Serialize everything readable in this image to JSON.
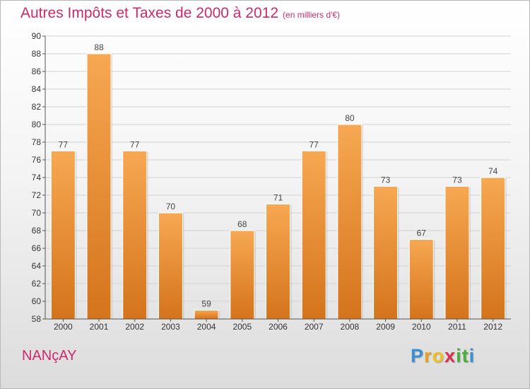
{
  "title": "Autres Impôts et Taxes de 2000 à 2012",
  "subtitle": "(en milliers d'€)",
  "commune": "NANçAY",
  "brand": {
    "letters": [
      "P",
      "r",
      "o",
      "x",
      "i",
      "t",
      "i"
    ],
    "colors": [
      "#3a8fd6",
      "#e8a21c",
      "#f0c020",
      "#d9324f",
      "#4aae3c",
      "#4aae3c",
      "#3a8fd6"
    ]
  },
  "colors": {
    "bar_top": "#f7a852",
    "bar_bottom": "#d4741c",
    "title": "#cc2a6d"
  },
  "chart_data": {
    "type": "bar",
    "title": "Autres Impôts et Taxes de 2000 à 2012",
    "subtitle": "(en milliers d'€)",
    "categories": [
      "2000",
      "2001",
      "2002",
      "2003",
      "2004",
      "2005",
      "2006",
      "2007",
      "2008",
      "2009",
      "2010",
      "2011",
      "2012"
    ],
    "values": [
      77,
      88,
      77,
      70,
      59,
      68,
      71,
      77,
      80,
      73,
      67,
      73,
      74
    ],
    "ylim": [
      58,
      90
    ],
    "yticks": [
      58,
      60,
      62,
      64,
      66,
      68,
      70,
      72,
      74,
      76,
      78,
      80,
      82,
      84,
      86,
      88,
      90
    ],
    "grid": true,
    "legend": false,
    "xlabel": "",
    "ylabel": ""
  }
}
